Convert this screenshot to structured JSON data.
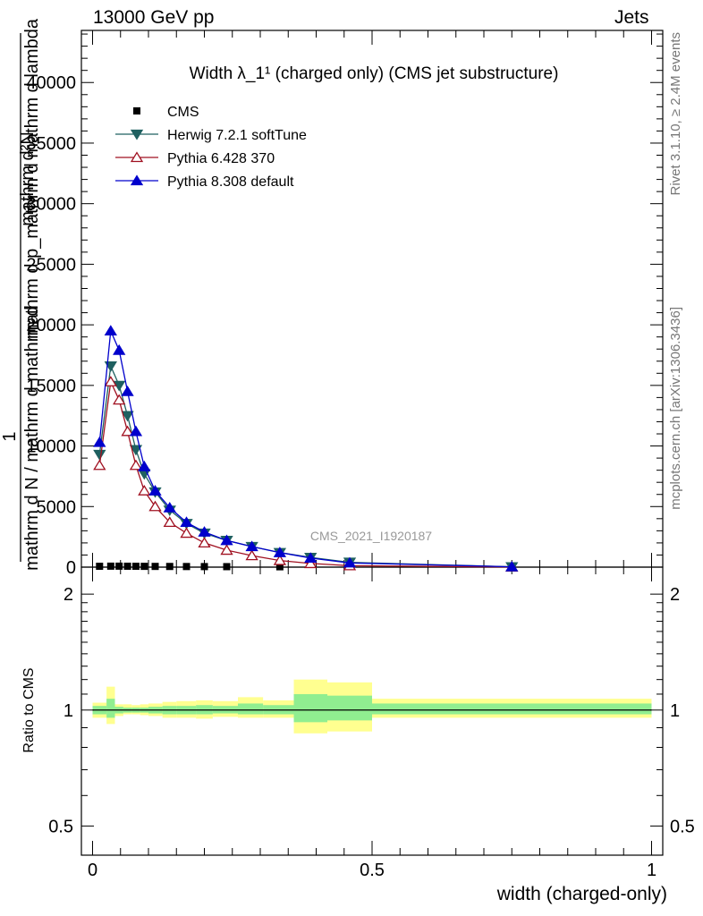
{
  "header": {
    "energy_label": "13000 GeV pp",
    "category_label": "Jets"
  },
  "side_labels": {
    "rivet": "Rivet 3.1.10, ≥ 2.4M events",
    "site": "mcplots.cern.ch [arXiv:1306.3436]"
  },
  "watermark": "CMS_2021_I1920187",
  "chart_data": [
    {
      "type": "line",
      "panel": "main",
      "title": "Width λ_1¹ (charged only) (CMS jet substructure)",
      "ylabel_lines": [
        "mathrm d²N",
        "mathrm d p_mathrm d mathrm d lambda",
        "1",
        "mathrm d N / mathrm d mathrm d"
      ],
      "xlim": [
        -0.02,
        1.02
      ],
      "ylim": [
        0,
        44300
      ],
      "yticks": [
        0,
        5000,
        10000,
        15000,
        20000,
        25000,
        30000,
        35000,
        40000
      ],
      "legend_position": "top-left",
      "series": [
        {
          "name": "CMS",
          "color": "#000000",
          "marker": "square",
          "x": [
            0.0125,
            0.0325,
            0.0475,
            0.0625,
            0.0775,
            0.0925,
            0.112,
            0.138,
            0.168,
            0.2,
            0.24,
            0.335
          ],
          "y": [
            70,
            80,
            80,
            75,
            70,
            65,
            60,
            55,
            50,
            45,
            40,
            30
          ]
        },
        {
          "name": "Herwig 7.2.1 softTune",
          "color": "#1f6060",
          "marker": "triangle-down",
          "x": [
            0.0125,
            0.0325,
            0.0475,
            0.0625,
            0.0775,
            0.0925,
            0.112,
            0.138,
            0.168,
            0.2,
            0.24,
            0.285,
            0.335,
            0.39,
            0.46,
            0.75
          ],
          "y": [
            9300,
            16600,
            15000,
            12500,
            9700,
            7700,
            6200,
            4700,
            3600,
            2800,
            2200,
            1700,
            1200,
            800,
            400,
            30
          ]
        },
        {
          "name": "Pythia 6.428 370",
          "color": "#a01020",
          "marker": "triangle-open",
          "x": [
            0.0125,
            0.0325,
            0.0475,
            0.0625,
            0.0775,
            0.0925,
            0.112,
            0.138,
            0.168,
            0.2,
            0.24,
            0.285,
            0.335,
            0.39,
            0.46,
            0.75
          ],
          "y": [
            8400,
            15300,
            13800,
            11200,
            8400,
            6300,
            5000,
            3700,
            2800,
            2000,
            1400,
            950,
            550,
            300,
            120,
            10
          ]
        },
        {
          "name": "Pythia 8.308 default",
          "color": "#0000cc",
          "marker": "triangle-up",
          "x": [
            0.0125,
            0.0325,
            0.0475,
            0.0625,
            0.0775,
            0.0925,
            0.112,
            0.138,
            0.168,
            0.2,
            0.24,
            0.285,
            0.335,
            0.39,
            0.46,
            0.75
          ],
          "y": [
            10300,
            19500,
            17900,
            14500,
            11200,
            8300,
            6300,
            4900,
            3700,
            2900,
            2200,
            1700,
            1200,
            750,
            350,
            30
          ]
        }
      ]
    },
    {
      "type": "area",
      "panel": "ratio",
      "ylabel": "Ratio to CMS",
      "xlabel": "width (charged-only)",
      "xlim": [
        -0.02,
        1.02
      ],
      "ylim": [
        0.42,
        2.35
      ],
      "log_y": true,
      "xticks": [
        "0",
        "0.5",
        "1"
      ],
      "yticks": [
        0.5,
        1,
        2
      ],
      "reference_line": 1,
      "band_colors": {
        "inner": "#90ee90",
        "outer": "#ffff90"
      },
      "bins": [
        {
          "x0": 0.0,
          "x1": 0.025,
          "outer": [
            0.955,
            1.045
          ],
          "inner": [
            0.975,
            1.025
          ]
        },
        {
          "x0": 0.025,
          "x1": 0.04,
          "outer": [
            0.92,
            1.15
          ],
          "inner": [
            0.955,
            1.07
          ]
        },
        {
          "x0": 0.04,
          "x1": 0.055,
          "outer": [
            0.965,
            1.035
          ],
          "inner": [
            0.98,
            1.02
          ]
        },
        {
          "x0": 0.055,
          "x1": 0.07,
          "outer": [
            0.975,
            1.035
          ],
          "inner": [
            0.985,
            1.015
          ]
        },
        {
          "x0": 0.07,
          "x1": 0.085,
          "outer": [
            0.975,
            1.03
          ],
          "inner": [
            0.985,
            1.015
          ]
        },
        {
          "x0": 0.085,
          "x1": 0.1,
          "outer": [
            0.97,
            1.035
          ],
          "inner": [
            0.985,
            1.015
          ]
        },
        {
          "x0": 0.1,
          "x1": 0.125,
          "outer": [
            0.965,
            1.04
          ],
          "inner": [
            0.98,
            1.02
          ]
        },
        {
          "x0": 0.125,
          "x1": 0.15,
          "outer": [
            0.955,
            1.05
          ],
          "inner": [
            0.975,
            1.025
          ]
        },
        {
          "x0": 0.15,
          "x1": 0.185,
          "outer": [
            0.955,
            1.055
          ],
          "inner": [
            0.975,
            1.025
          ]
        },
        {
          "x0": 0.185,
          "x1": 0.215,
          "outer": [
            0.95,
            1.06
          ],
          "inner": [
            0.975,
            1.03
          ]
        },
        {
          "x0": 0.215,
          "x1": 0.26,
          "outer": [
            0.96,
            1.055
          ],
          "inner": [
            0.98,
            1.025
          ]
        },
        {
          "x0": 0.26,
          "x1": 0.305,
          "outer": [
            0.955,
            1.08
          ],
          "inner": [
            0.975,
            1.04
          ]
        },
        {
          "x0": 0.305,
          "x1": 0.36,
          "outer": [
            0.955,
            1.06
          ],
          "inner": [
            0.975,
            1.03
          ]
        },
        {
          "x0": 0.36,
          "x1": 0.42,
          "outer": [
            0.87,
            1.2
          ],
          "inner": [
            0.93,
            1.1
          ]
        },
        {
          "x0": 0.42,
          "x1": 0.5,
          "outer": [
            0.88,
            1.18
          ],
          "inner": [
            0.94,
            1.09
          ]
        },
        {
          "x0": 0.5,
          "x1": 1.0,
          "outer": [
            0.955,
            1.07
          ],
          "inner": [
            0.975,
            1.04
          ]
        }
      ],
      "series": [
        {
          "name": "CMS",
          "color": "#000000",
          "y": [
            1,
            1,
            1,
            1,
            1,
            1,
            1,
            1,
            1,
            1,
            1,
            1,
            1,
            1,
            1,
            1
          ]
        }
      ]
    }
  ]
}
